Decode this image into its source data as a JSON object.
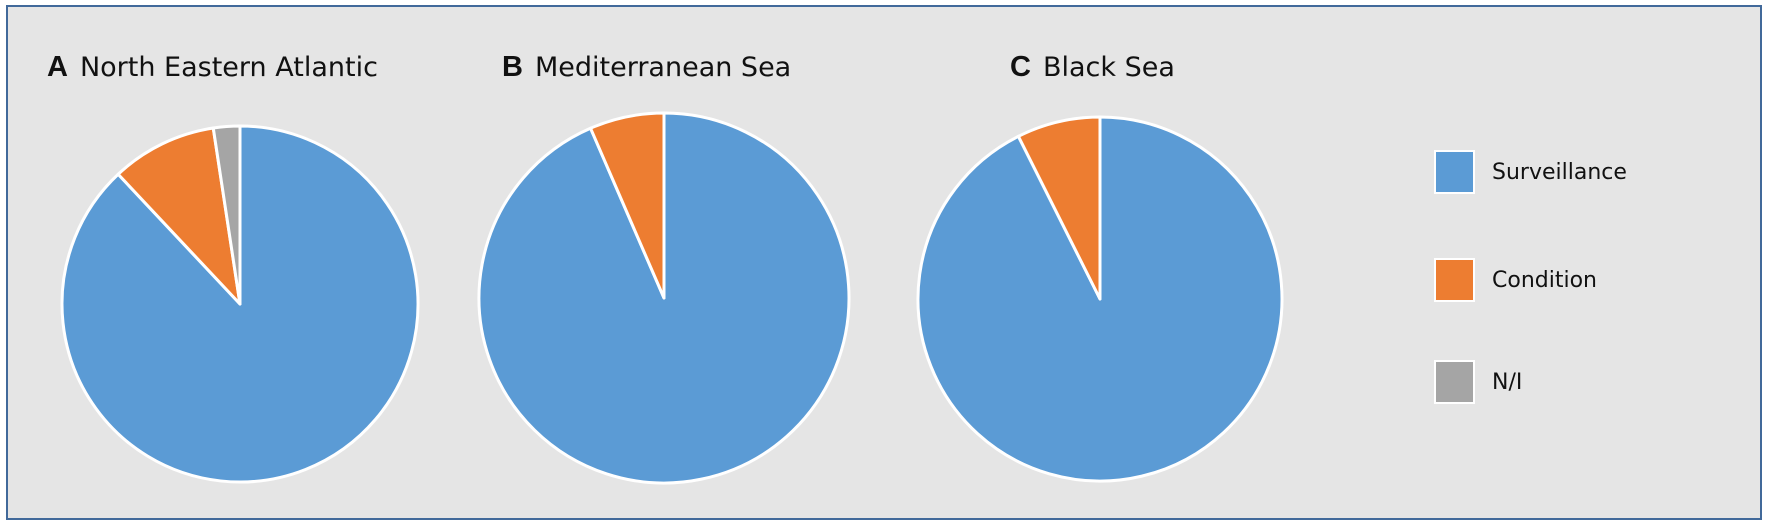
{
  "chart_data": [
    {
      "type": "pie",
      "panel": "A",
      "title": "North Eastern Atlantic",
      "categories": [
        "Surveillance",
        "Condition",
        "N/I"
      ],
      "values": [
        88.0,
        9.6,
        2.4
      ],
      "unit": "%",
      "start_angle_deg": 0,
      "direction": "clockwise"
    },
    {
      "type": "pie",
      "panel": "B",
      "title": "Mediterranean Sea",
      "categories": [
        "Surveillance",
        "Condition",
        "N/I"
      ],
      "values": [
        93.5,
        6.5,
        0
      ],
      "unit": "%",
      "start_angle_deg": 0,
      "direction": "clockwise"
    },
    {
      "type": "pie",
      "panel": "C",
      "title": "Black Sea",
      "categories": [
        "Surveillance",
        "Condition",
        "N/I"
      ],
      "values": [
        92.6,
        7.4,
        0
      ],
      "unit": "%",
      "start_angle_deg": 0,
      "direction": "clockwise"
    }
  ],
  "panels": [
    {
      "letter": "A",
      "title": "North Eastern Atlantic"
    },
    {
      "letter": "B",
      "title": "Mediterranean Sea"
    },
    {
      "letter": "C",
      "title": "Black Sea"
    }
  ],
  "legend": {
    "position": "right",
    "items": [
      {
        "label": "Surveillance",
        "color": "#5b9bd5"
      },
      {
        "label": "Condition",
        "color": "#ed7d31"
      },
      {
        "label": "N/I",
        "color": "#a5a5a5"
      }
    ]
  },
  "colors": {
    "background": "#e5e5e5",
    "frame_border": "#41699a",
    "slice_separator": "#ffffff"
  }
}
